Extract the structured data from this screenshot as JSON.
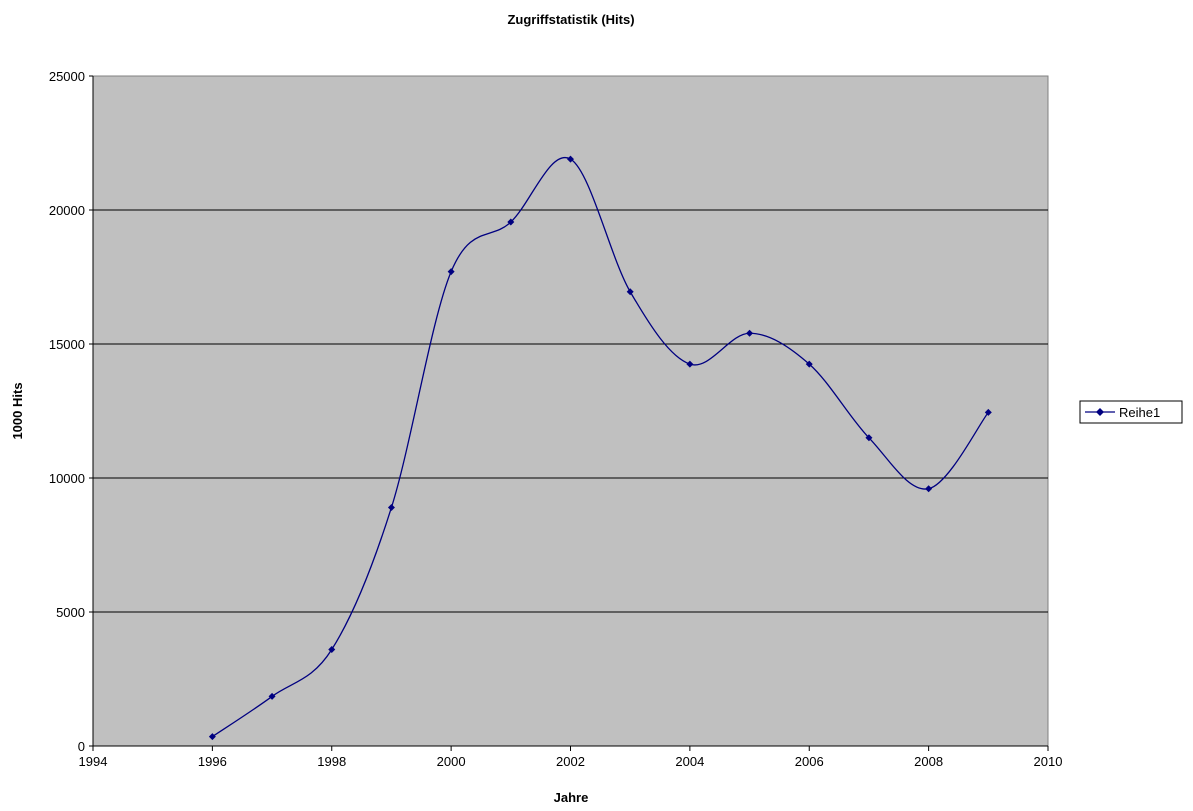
{
  "chart_data": {
    "type": "line",
    "title": "Zugriffstatistik (Hits)",
    "xlabel": "Jahre",
    "ylabel": "1000 Hits",
    "xlim": [
      1994,
      2010
    ],
    "ylim": [
      0,
      25000
    ],
    "x_ticks": [
      "1994",
      "1996",
      "1998",
      "2000",
      "2002",
      "2004",
      "2006",
      "2008",
      "2010"
    ],
    "y_ticks": [
      "0",
      "5000",
      "10000",
      "15000",
      "20000",
      "25000"
    ],
    "grid": "horizontal",
    "smooth": true,
    "legend_position": "right",
    "plot_background": "#C0C0C0",
    "series": [
      {
        "name": "Reihe1",
        "color": "#000080",
        "marker": "diamond",
        "x": [
          1996,
          1997,
          1998,
          1999,
          2000,
          2001,
          2002,
          2003,
          2004,
          2005,
          2006,
          2007,
          2008,
          2009
        ],
        "y": [
          350,
          1850,
          3600,
          8900,
          17700,
          19550,
          21900,
          16950,
          14250,
          15400,
          14250,
          11500,
          9600,
          12450
        ]
      }
    ]
  }
}
